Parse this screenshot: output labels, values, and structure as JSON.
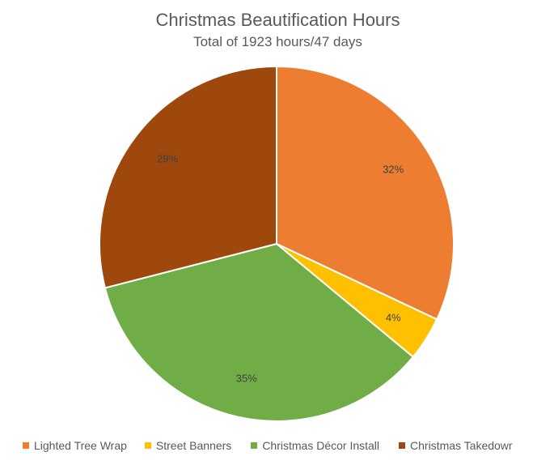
{
  "chart_data": {
    "type": "pie",
    "title": "Christmas Beautification Hours",
    "subtitle": "Total of 1923 hours/47 days",
    "slices": [
      {
        "label": "Lighted Tree Wrap",
        "value": 32,
        "data_label": "32%",
        "color": "#ED7D31"
      },
      {
        "label": "Street Banners",
        "value": 4,
        "data_label": "4%",
        "color": "#FFC000"
      },
      {
        "label": "Christmas Décor Install",
        "value": 35,
        "data_label": "35%",
        "color": "#70AD47"
      },
      {
        "label": "Christmas Takedowr",
        "value": 29,
        "data_label": "29%",
        "color": "#9E480E"
      }
    ],
    "legend_position": "bottom",
    "start_angle": "12 o'clock",
    "direction": "clockwise"
  }
}
